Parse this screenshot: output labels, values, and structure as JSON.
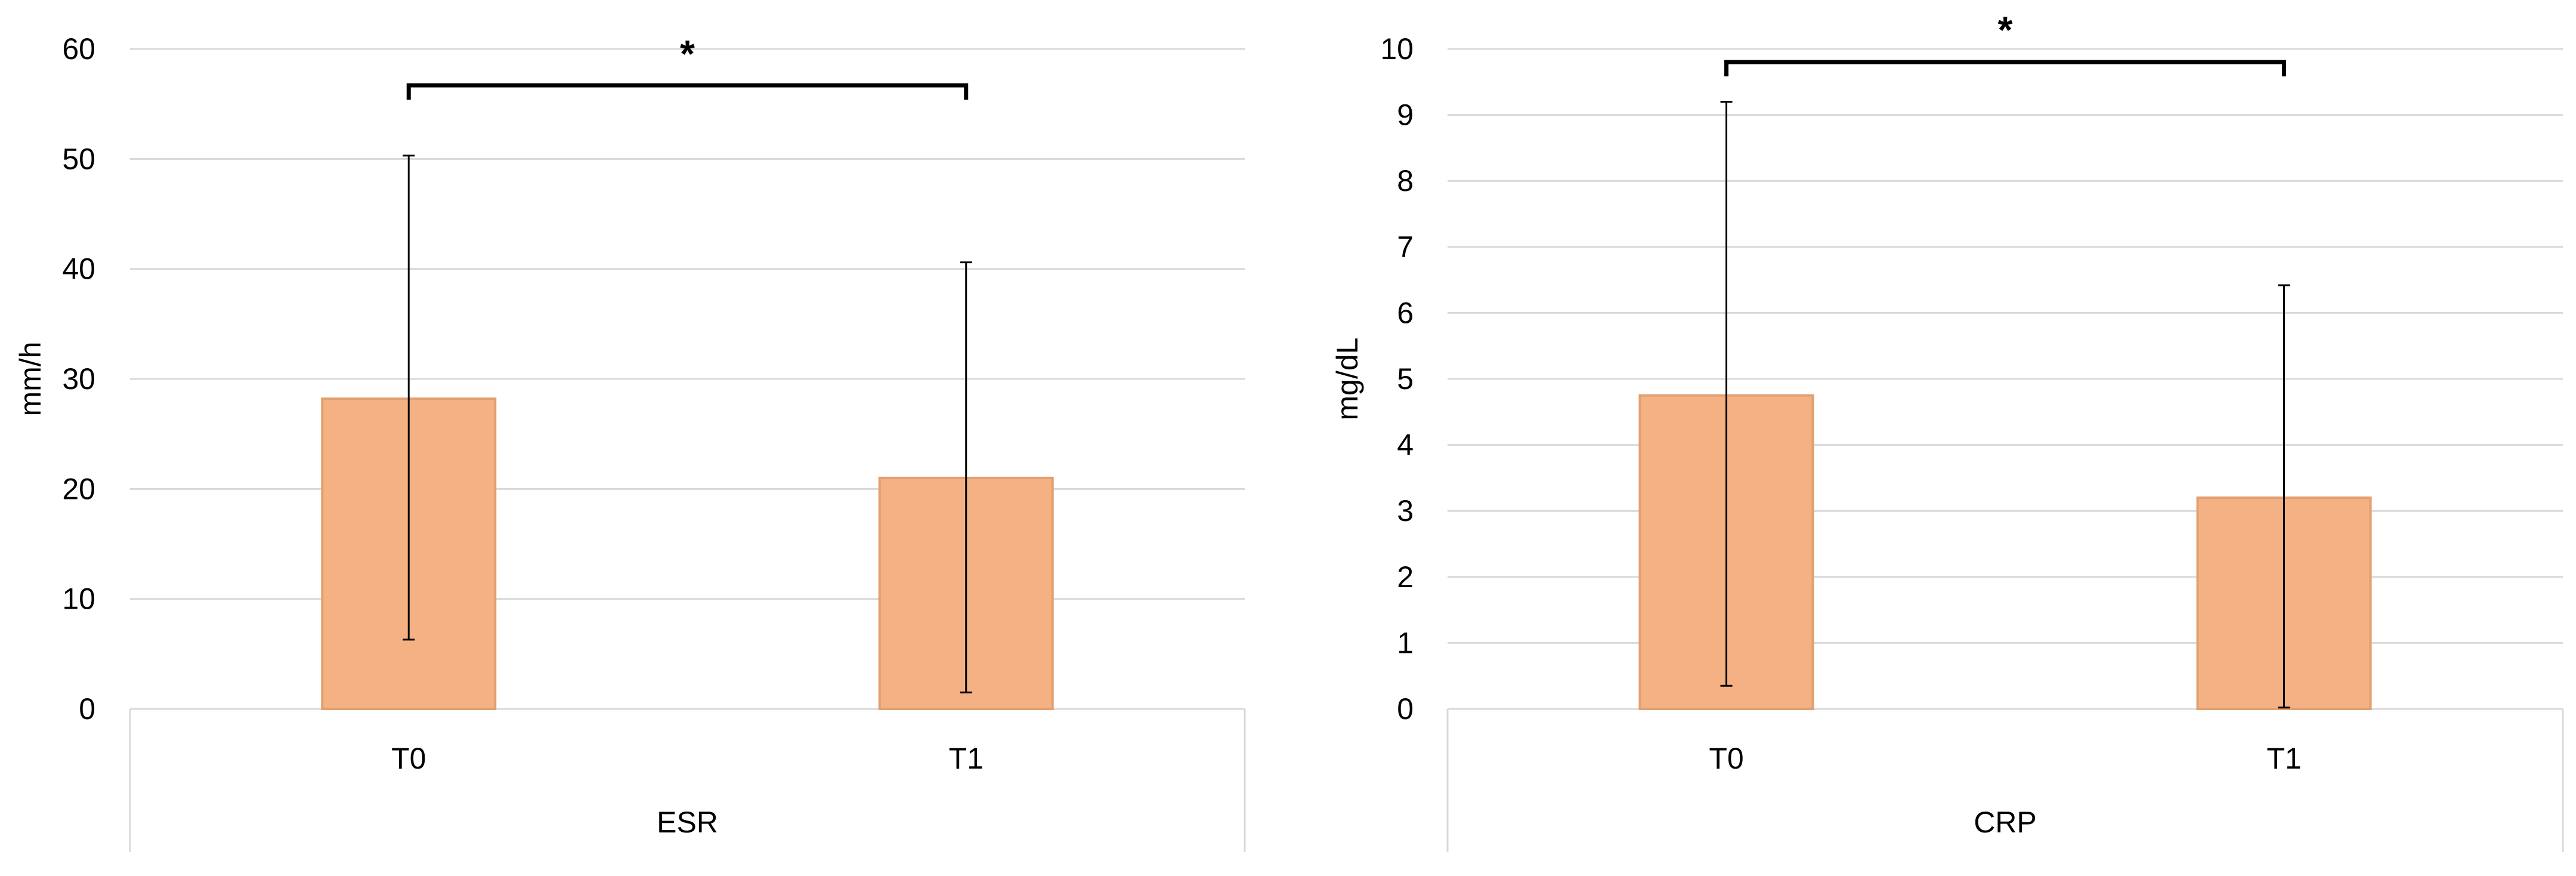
{
  "chart_data": [
    {
      "type": "bar",
      "ylabel": "mm/h",
      "group_label": "ESR",
      "categories": [
        "T0",
        "T1"
      ],
      "values": [
        28.2,
        21.0
      ],
      "error_low": [
        6.3,
        1.5
      ],
      "error_high": [
        50.3,
        40.6
      ],
      "ylim": [
        0,
        60
      ],
      "yticks": [
        0,
        10,
        20,
        30,
        40,
        50,
        60
      ],
      "grid": true,
      "significance": {
        "between": [
          "T0",
          "T1"
        ],
        "label": "*"
      },
      "bar_color": "#F4B183",
      "bar_edge_color": "#E2A070"
    },
    {
      "type": "bar",
      "ylabel": "mg/dL",
      "group_label": "CRP",
      "categories": [
        "T0",
        "T1"
      ],
      "values": [
        4.75,
        3.2
      ],
      "error_low": [
        0.35,
        0.02
      ],
      "error_high": [
        9.2,
        6.42
      ],
      "ylim": [
        0,
        10
      ],
      "yticks": [
        0,
        1,
        2,
        3,
        4,
        5,
        6,
        7,
        8,
        9,
        10
      ],
      "grid": true,
      "significance": {
        "between": [
          "T0",
          "T1"
        ],
        "label": "*"
      },
      "bar_color": "#F4B183",
      "bar_edge_color": "#E2A070"
    }
  ]
}
